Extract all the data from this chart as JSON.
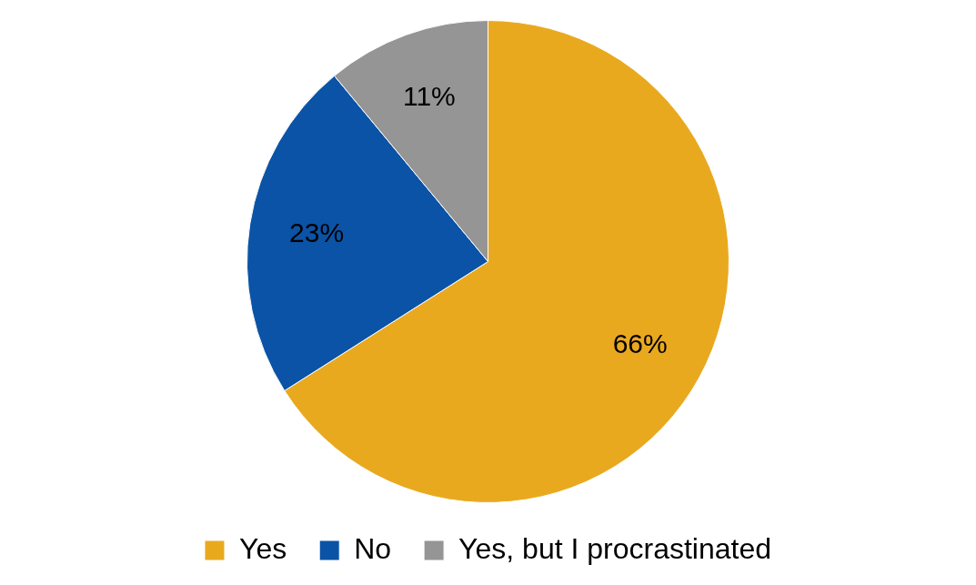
{
  "chart_data": {
    "type": "pie",
    "categories": [
      "Yes",
      "No",
      "Yes, but I procrastinated"
    ],
    "values": [
      66,
      23,
      11
    ],
    "colors": [
      "#e9a91f",
      "#0b53a6",
      "#959595"
    ],
    "value_labels": [
      "66%",
      "23%",
      "11%"
    ],
    "legend": "bottom"
  }
}
